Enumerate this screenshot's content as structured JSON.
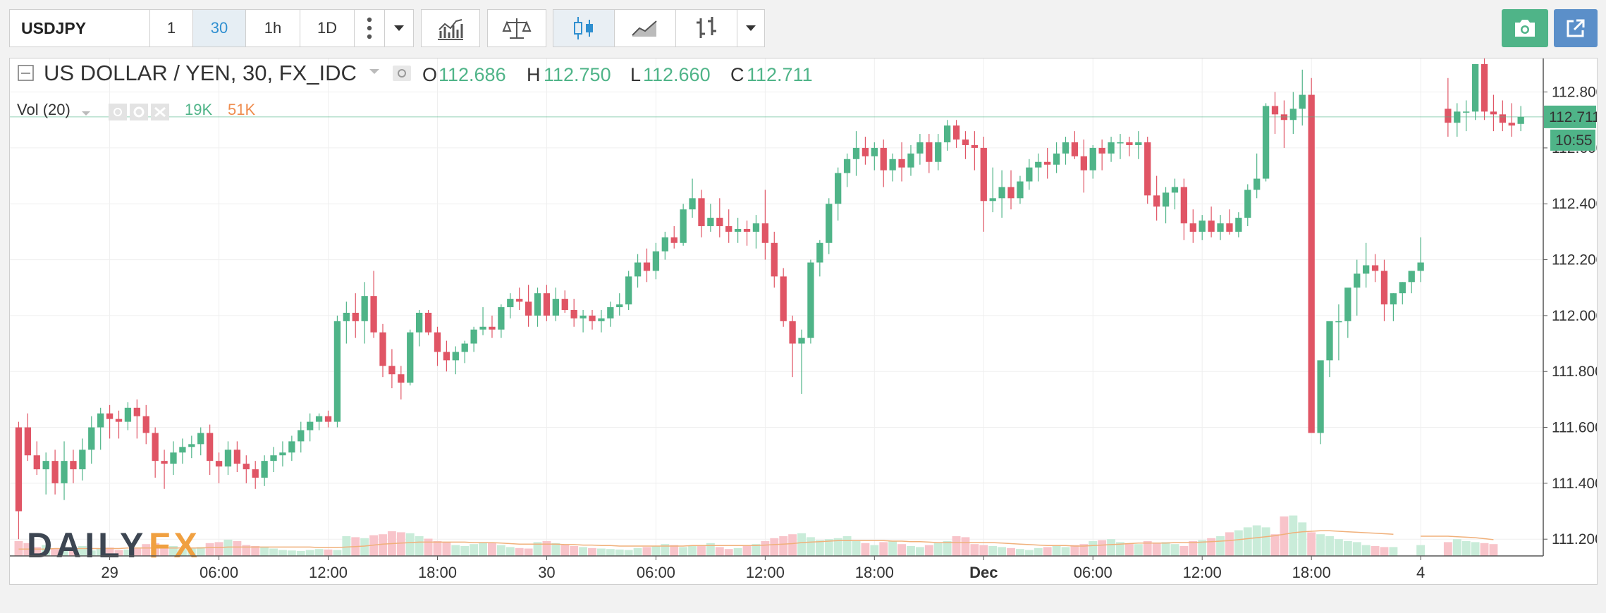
{
  "toolbar": {
    "symbol": "USDJPY",
    "intervals": [
      "1",
      "30",
      "1h",
      "1D"
    ],
    "active_interval": "30"
  },
  "legend": {
    "title": "US DOLLAR / YEN, 30, FX_IDC",
    "o_label": "O",
    "o_value": "112.686",
    "h_label": "H",
    "h_value": "112.750",
    "l_label": "L",
    "l_value": "112.660",
    "c_label": "C",
    "c_value": "112.711",
    "vol_label": "Vol (20)",
    "vol_value1": "19K",
    "vol_value2": "51K"
  },
  "price_tag": {
    "price": "112.711",
    "countdown": "10:55"
  },
  "brand": {
    "part1": "DAILY",
    "part2": "FX"
  },
  "colors": {
    "up": "#4fb488",
    "down": "#e05565",
    "vol_up": "#c9ecd9",
    "vol_down": "#f8c4ca",
    "ma": "#f0b07a",
    "grid": "#efefef"
  },
  "chart_data": {
    "type": "candlestick",
    "title": "US DOLLAR / YEN, 30, FX_IDC",
    "y_ticks": [
      "111.200",
      "111.400",
      "111.600",
      "111.800",
      "112.000",
      "112.200",
      "112.400",
      "112.600",
      "112.800"
    ],
    "ylim": [
      111.14,
      112.92
    ],
    "x_ticks": [
      {
        "label": "29",
        "index": 10,
        "bold": false
      },
      {
        "label": "06:00",
        "index": 22,
        "bold": false
      },
      {
        "label": "12:00",
        "index": 34,
        "bold": false
      },
      {
        "label": "18:00",
        "index": 46,
        "bold": false
      },
      {
        "label": "30",
        "index": 58,
        "bold": false
      },
      {
        "label": "06:00",
        "index": 70,
        "bold": false
      },
      {
        "label": "12:00",
        "index": 82,
        "bold": false
      },
      {
        "label": "18:00",
        "index": 94,
        "bold": false
      },
      {
        "label": "Dec",
        "index": 106,
        "bold": true
      },
      {
        "label": "06:00",
        "index": 118,
        "bold": false
      },
      {
        "label": "12:00",
        "index": 130,
        "bold": false
      },
      {
        "label": "18:00",
        "index": 142,
        "bold": false
      },
      {
        "label": "4",
        "index": 154,
        "bold": false
      }
    ],
    "grid": true,
    "candles": [
      [
        111.6,
        111.62,
        111.2,
        111.3
      ],
      [
        111.6,
        111.65,
        111.48,
        111.5
      ],
      [
        111.5,
        111.55,
        111.43,
        111.45
      ],
      [
        111.45,
        111.51,
        111.36,
        111.48
      ],
      [
        111.48,
        111.52,
        111.36,
        111.4
      ],
      [
        111.4,
        111.55,
        111.34,
        111.48
      ],
      [
        111.48,
        111.52,
        111.4,
        111.45
      ],
      [
        111.45,
        111.56,
        111.41,
        111.52
      ],
      [
        111.52,
        111.64,
        111.47,
        111.6
      ],
      [
        111.6,
        111.67,
        111.52,
        111.65
      ],
      [
        111.65,
        111.68,
        111.56,
        111.63
      ],
      [
        111.63,
        111.66,
        111.56,
        111.62
      ],
      [
        111.62,
        111.69,
        111.59,
        111.67
      ],
      [
        111.67,
        111.7,
        111.56,
        111.64
      ],
      [
        111.64,
        111.68,
        111.54,
        111.58
      ],
      [
        111.58,
        111.6,
        111.42,
        111.48
      ],
      [
        111.48,
        111.52,
        111.38,
        111.47
      ],
      [
        111.47,
        111.55,
        111.43,
        111.51
      ],
      [
        111.51,
        111.56,
        111.47,
        111.53
      ],
      [
        111.53,
        111.57,
        111.49,
        111.54
      ],
      [
        111.54,
        111.6,
        111.5,
        111.58
      ],
      [
        111.58,
        111.61,
        111.43,
        111.48
      ],
      [
        111.48,
        111.51,
        111.4,
        111.46
      ],
      [
        111.46,
        111.55,
        111.43,
        111.52
      ],
      [
        111.52,
        111.55,
        111.44,
        111.47
      ],
      [
        111.47,
        111.5,
        111.4,
        111.45
      ],
      [
        111.45,
        111.48,
        111.38,
        111.42
      ],
      [
        111.42,
        111.5,
        111.39,
        111.48
      ],
      [
        111.48,
        111.53,
        111.44,
        111.5
      ],
      [
        111.5,
        111.55,
        111.46,
        111.51
      ],
      [
        111.51,
        111.57,
        111.48,
        111.55
      ],
      [
        111.55,
        111.62,
        111.51,
        111.59
      ],
      [
        111.59,
        111.65,
        111.55,
        111.62
      ],
      [
        111.62,
        111.65,
        111.59,
        111.64
      ],
      [
        111.64,
        111.66,
        111.6,
        111.62
      ],
      [
        111.62,
        112.0,
        111.6,
        111.98
      ],
      [
        111.98,
        112.05,
        111.9,
        112.01
      ],
      [
        112.01,
        112.08,
        111.92,
        111.98
      ],
      [
        111.98,
        112.12,
        111.9,
        112.07
      ],
      [
        112.07,
        112.16,
        111.92,
        111.94
      ],
      [
        111.94,
        111.97,
        111.78,
        111.82
      ],
      [
        111.82,
        111.88,
        111.74,
        111.79
      ],
      [
        111.79,
        111.82,
        111.7,
        111.76
      ],
      [
        111.76,
        111.95,
        111.75,
        111.94
      ],
      [
        111.94,
        112.02,
        111.89,
        112.01
      ],
      [
        112.01,
        112.02,
        111.93,
        111.94
      ],
      [
        111.94,
        111.96,
        111.82,
        111.87
      ],
      [
        111.87,
        111.91,
        111.8,
        111.84
      ],
      [
        111.84,
        111.89,
        111.79,
        111.87
      ],
      [
        111.87,
        111.91,
        111.83,
        111.9
      ],
      [
        111.9,
        111.96,
        111.87,
        111.95
      ],
      [
        111.95,
        112.03,
        111.93,
        111.96
      ],
      [
        111.96,
        112.0,
        111.92,
        111.95
      ],
      [
        111.95,
        112.04,
        111.92,
        112.03
      ],
      [
        112.03,
        112.08,
        111.99,
        112.06
      ],
      [
        112.06,
        112.1,
        112.02,
        112.05
      ],
      [
        112.05,
        112.11,
        111.96,
        112.0
      ],
      [
        112.0,
        112.1,
        111.96,
        112.08
      ],
      [
        112.08,
        112.11,
        111.98,
        112.0
      ],
      [
        112.0,
        112.1,
        111.98,
        112.06
      ],
      [
        112.06,
        112.09,
        112.01,
        112.02
      ],
      [
        112.02,
        112.06,
        111.96,
        111.99
      ],
      [
        111.99,
        112.02,
        111.94,
        112.0
      ],
      [
        112.0,
        112.02,
        111.95,
        111.98
      ],
      [
        111.98,
        112.02,
        111.94,
        111.99
      ],
      [
        111.99,
        112.05,
        111.96,
        112.03
      ],
      [
        112.03,
        112.08,
        112.0,
        112.04
      ],
      [
        112.04,
        112.16,
        112.02,
        112.14
      ],
      [
        112.14,
        112.22,
        112.1,
        112.19
      ],
      [
        112.19,
        112.24,
        112.12,
        112.16
      ],
      [
        112.16,
        112.26,
        112.13,
        112.23
      ],
      [
        112.23,
        112.3,
        112.2,
        112.28
      ],
      [
        112.28,
        112.32,
        112.24,
        112.26
      ],
      [
        112.26,
        112.4,
        112.25,
        112.38
      ],
      [
        112.38,
        112.49,
        112.35,
        112.42
      ],
      [
        112.42,
        112.45,
        112.28,
        112.32
      ],
      [
        112.32,
        112.4,
        112.3,
        112.35
      ],
      [
        112.35,
        112.42,
        112.28,
        112.32
      ],
      [
        112.32,
        112.38,
        112.26,
        112.3
      ],
      [
        112.3,
        112.35,
        112.26,
        112.31
      ],
      [
        112.31,
        112.34,
        112.25,
        112.3
      ],
      [
        112.3,
        112.36,
        112.24,
        112.33
      ],
      [
        112.33,
        112.45,
        112.2,
        112.26
      ],
      [
        112.26,
        112.3,
        112.1,
        112.14
      ],
      [
        112.14,
        112.17,
        111.96,
        111.98
      ],
      [
        111.98,
        112.0,
        111.78,
        111.9
      ],
      [
        111.9,
        111.95,
        111.72,
        111.92
      ],
      [
        111.92,
        112.2,
        111.9,
        112.19
      ],
      [
        112.19,
        112.27,
        112.14,
        112.26
      ],
      [
        112.26,
        112.42,
        112.22,
        112.4
      ],
      [
        112.4,
        112.53,
        112.34,
        112.51
      ],
      [
        112.51,
        112.58,
        112.46,
        112.56
      ],
      [
        112.56,
        112.66,
        112.5,
        112.6
      ],
      [
        112.6,
        112.64,
        112.54,
        112.57
      ],
      [
        112.57,
        112.62,
        112.52,
        112.6
      ],
      [
        112.6,
        112.63,
        112.46,
        112.52
      ],
      [
        112.52,
        112.58,
        112.48,
        112.56
      ],
      [
        112.56,
        112.62,
        112.48,
        112.53
      ],
      [
        112.53,
        112.61,
        112.5,
        112.58
      ],
      [
        112.58,
        112.65,
        112.54,
        112.62
      ],
      [
        112.62,
        112.65,
        112.51,
        112.55
      ],
      [
        112.55,
        112.65,
        112.52,
        112.62
      ],
      [
        112.62,
        112.7,
        112.59,
        112.68
      ],
      [
        112.68,
        112.7,
        112.6,
        112.63
      ],
      [
        112.63,
        112.66,
        112.56,
        112.61
      ],
      [
        112.61,
        112.66,
        112.52,
        112.6
      ],
      [
        112.6,
        112.64,
        112.3,
        112.41
      ],
      [
        112.41,
        112.53,
        112.37,
        112.42
      ],
      [
        112.42,
        112.52,
        112.35,
        112.46
      ],
      [
        112.46,
        112.52,
        112.38,
        112.42
      ],
      [
        112.42,
        112.5,
        112.4,
        112.48
      ],
      [
        112.48,
        112.56,
        112.45,
        112.53
      ],
      [
        112.53,
        112.58,
        112.48,
        112.55
      ],
      [
        112.55,
        112.6,
        112.49,
        112.54
      ],
      [
        112.54,
        112.62,
        112.51,
        112.58
      ],
      [
        112.58,
        112.64,
        112.54,
        112.62
      ],
      [
        112.62,
        112.66,
        112.56,
        112.57
      ],
      [
        112.57,
        112.63,
        112.44,
        112.52
      ],
      [
        112.52,
        112.61,
        112.49,
        112.6
      ],
      [
        112.6,
        112.63,
        112.52,
        112.58
      ],
      [
        112.58,
        112.64,
        112.55,
        112.62
      ],
      [
        112.62,
        112.65,
        112.56,
        112.62
      ],
      [
        112.62,
        112.64,
        112.57,
        112.61
      ],
      [
        112.61,
        112.66,
        112.56,
        112.62
      ],
      [
        112.62,
        112.64,
        112.4,
        112.43
      ],
      [
        112.43,
        112.5,
        112.34,
        112.39
      ],
      [
        112.39,
        112.46,
        112.33,
        112.44
      ],
      [
        112.44,
        112.49,
        112.38,
        112.46
      ],
      [
        112.46,
        112.49,
        112.27,
        112.33
      ],
      [
        112.33,
        112.38,
        112.26,
        112.3
      ],
      [
        112.3,
        112.36,
        112.27,
        112.34
      ],
      [
        112.34,
        112.39,
        112.28,
        112.3
      ],
      [
        112.3,
        112.36,
        112.27,
        112.33
      ],
      [
        112.33,
        112.38,
        112.29,
        112.3
      ],
      [
        112.3,
        112.37,
        112.28,
        112.35
      ],
      [
        112.35,
        112.47,
        112.32,
        112.45
      ],
      [
        112.45,
        112.58,
        112.42,
        112.49
      ],
      [
        112.49,
        112.76,
        112.48,
        112.75
      ],
      [
        112.75,
        112.8,
        112.65,
        112.72
      ],
      [
        112.72,
        112.77,
        112.6,
        112.7
      ],
      [
        112.7,
        112.8,
        112.65,
        112.74
      ],
      [
        112.74,
        112.88,
        112.68,
        112.79
      ],
      [
        112.79,
        112.85,
        111.58,
        111.58
      ],
      [
        111.58,
        111.64,
        111.54,
        111.84
      ],
      [
        111.84,
        111.96,
        111.78,
        111.98
      ],
      [
        111.98,
        112.04,
        111.84,
        111.98
      ],
      [
        111.98,
        112.08,
        111.92,
        112.1
      ],
      [
        112.1,
        112.2,
        112.0,
        112.15
      ],
      [
        112.15,
        112.26,
        112.1,
        112.18
      ],
      [
        112.18,
        112.22,
        112.12,
        112.16
      ],
      [
        112.16,
        112.2,
        111.98,
        112.04
      ],
      [
        112.04,
        112.08,
        111.98,
        112.08
      ],
      [
        112.08,
        112.12,
        112.04,
        112.12
      ],
      [
        112.12,
        112.16,
        112.08,
        112.16
      ],
      [
        112.16,
        112.28,
        112.12,
        112.19
      ],
      null,
      null,
      [
        112.74,
        112.85,
        112.64,
        112.69
      ],
      [
        112.69,
        112.76,
        112.64,
        112.73
      ],
      [
        112.73,
        112.77,
        112.66,
        112.73
      ],
      [
        112.73,
        112.9,
        112.7,
        112.9
      ],
      [
        112.9,
        112.92,
        112.7,
        112.73
      ],
      [
        112.73,
        112.79,
        112.66,
        112.72
      ],
      [
        112.72,
        112.77,
        112.66,
        112.69
      ],
      [
        112.69,
        112.76,
        112.64,
        112.68
      ],
      [
        112.686,
        112.75,
        112.66,
        112.711
      ]
    ],
    "volume_ylim": [
      0,
      100
    ],
    "volumes": [
      30,
      26,
      18,
      22,
      14,
      16,
      12,
      20,
      11,
      15,
      17,
      12,
      13,
      16,
      24,
      26,
      22,
      20,
      14,
      16,
      18,
      26,
      28,
      33,
      30,
      22,
      20,
      18,
      15,
      12,
      11,
      10,
      12,
      14,
      13,
      12,
      40,
      38,
      36,
      42,
      44,
      50,
      48,
      46,
      40,
      35,
      30,
      28,
      22,
      20,
      24,
      28,
      26,
      22,
      18,
      16,
      15,
      28,
      30,
      26,
      22,
      20,
      18,
      16,
      15,
      14,
      13,
      12,
      16,
      18,
      20,
      24,
      22,
      18,
      20,
      22,
      26,
      18,
      14,
      16,
      20,
      24,
      30,
      36,
      40,
      44,
      46,
      38,
      32,
      34,
      36,
      40,
      30,
      26,
      22,
      28,
      30,
      24,
      20,
      18,
      22,
      26,
      30,
      40,
      38,
      24,
      22,
      20,
      18,
      16,
      14,
      12,
      16,
      18,
      20,
      18,
      22,
      24,
      30,
      32,
      34,
      28,
      26,
      24,
      30,
      26,
      28,
      24,
      20,
      30,
      32,
      36,
      40,
      48,
      52,
      58,
      62,
      58,
      44,
      80,
      82,
      68,
      48,
      44,
      40,
      34,
      30,
      28,
      22,
      20,
      18,
      18,
      null,
      null,
      22,
      26,
      30,
      28,
      34,
      30,
      28,
      26,
      24
    ],
    "volume_ma": [
      14,
      14,
      14,
      14,
      15,
      15,
      15,
      15,
      15,
      15,
      15,
      15,
      16,
      16,
      16,
      16,
      16,
      16,
      16,
      16,
      16,
      17,
      17,
      18,
      18,
      18,
      18,
      18,
      18,
      18,
      18,
      18,
      18,
      17,
      17,
      17,
      18,
      19,
      20,
      22,
      24,
      25,
      26,
      27,
      28,
      28,
      28,
      28,
      28,
      28,
      27,
      27,
      27,
      26,
      25,
      24,
      24,
      24,
      24,
      24,
      23,
      23,
      22,
      22,
      21,
      21,
      20,
      20,
      20,
      20,
      20,
      20,
      20,
      20,
      21,
      21,
      21,
      21,
      21,
      21,
      21,
      21,
      22,
      23,
      24,
      25,
      27,
      28,
      29,
      30,
      31,
      31,
      31,
      31,
      31,
      31,
      30,
      30,
      29,
      29,
      28,
      27,
      27,
      27,
      27,
      27,
      27,
      27,
      26,
      25,
      24,
      23,
      22,
      21,
      21,
      21,
      20,
      20,
      21,
      22,
      23,
      24,
      25,
      26,
      26,
      26,
      26,
      27,
      27,
      27,
      28,
      29,
      30,
      31,
      33,
      35,
      37,
      39,
      41,
      44,
      47,
      49,
      50,
      51,
      51,
      50,
      49,
      48,
      47,
      46,
      45,
      44,
      null,
      null,
      40,
      40,
      40,
      40,
      39,
      38,
      37,
      35,
      33
    ]
  }
}
